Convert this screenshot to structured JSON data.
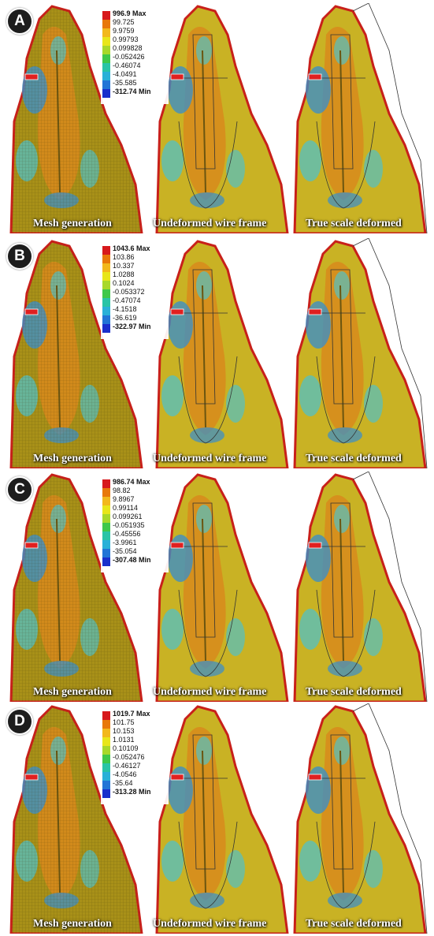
{
  "colors": {
    "scale": [
      "#d7191c",
      "#e8780a",
      "#f2b81c",
      "#e8e61a",
      "#a8d82a",
      "#3fc84a",
      "#29c4a6",
      "#2ab1d8",
      "#2275d6",
      "#1a2fcc"
    ],
    "tooth_base": "#a89018",
    "tooth_mid": "#c9b224",
    "stress_orange": "#d88a1c",
    "stress_blue": "#3f8fc4",
    "stress_cyan": "#52c0c4",
    "edge_red": "#c8201a"
  },
  "captions": [
    "Mesh generation",
    "Undeformed wire frame",
    "True scale deformed"
  ],
  "panels": [
    {
      "label": "A",
      "max": "996.9 Max",
      "min": "-312.74 Min",
      "ticks": [
        "99.725",
        "9.9759",
        "0.99793",
        "0.099828",
        "-0.052426",
        "-0.46074",
        "-4.0491",
        "-35.585"
      ]
    },
    {
      "label": "B",
      "max": "1043.6 Max",
      "min": "-322.97 Min",
      "ticks": [
        "103.86",
        "10.337",
        "1.0288",
        "0.1024",
        "-0.053372",
        "-0.47074",
        "-4.1518",
        "-36.619"
      ]
    },
    {
      "label": "C",
      "max": "986.74 Max",
      "min": "-307.48 Min",
      "ticks": [
        "98.82",
        "9.8967",
        "0.99114",
        "0.099261",
        "-0.051935",
        "-0.45556",
        "-3.9961",
        "-35.054"
      ]
    },
    {
      "label": "D",
      "max": "1019.7 Max",
      "min": "-313.28 Min",
      "ticks": [
        "101.75",
        "10.153",
        "1.0131",
        "0.10109",
        "-0.052476",
        "-0.46127",
        "-4.0546",
        "-35.64"
      ]
    }
  ]
}
